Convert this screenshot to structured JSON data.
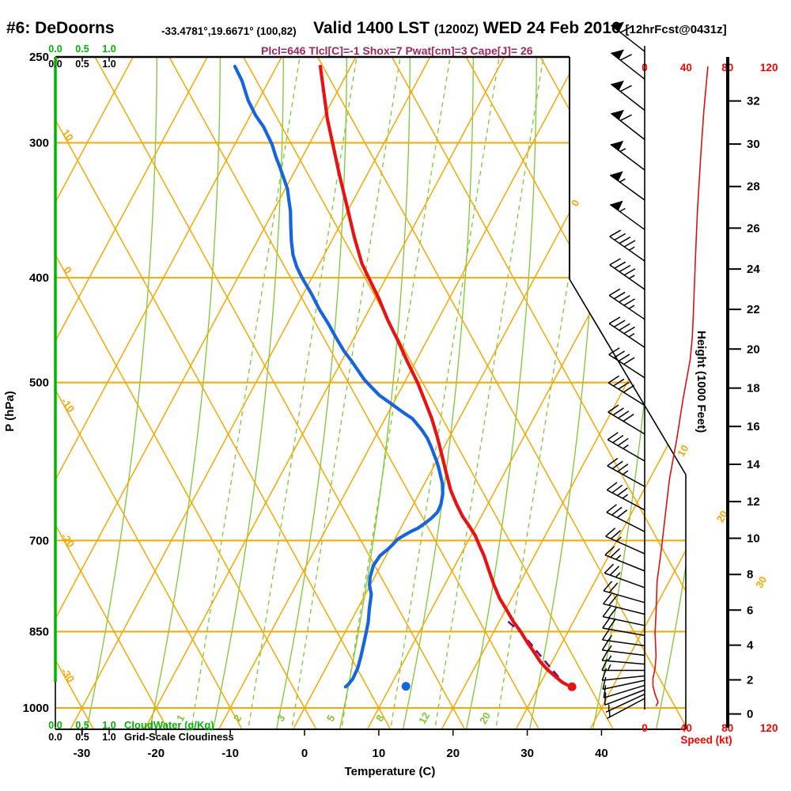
{
  "header": {
    "station": "#6: DeDoorns",
    "coords": "-33.4781°,19.6671° (100,82)",
    "valid_main": "Valid 1400 LST",
    "valid_z": "(1200Z)",
    "valid_date": "WED 24 Feb 2016",
    "fcst_tag": "[12hrFcst@0431z]"
  },
  "params_line": "Plcl=646 Tlcl[C]=-1 Shox=7 Pwat[cm]=3 Cape[J]= 26",
  "indices": {
    "Plcl": 646,
    "Tlcl_C": -1,
    "Shox": 7,
    "Pwat_cm": 3,
    "Cape_J": 26
  },
  "axes": {
    "pressure": {
      "label": "P (hPa)",
      "ticks": [
        250,
        300,
        400,
        500,
        700,
        850,
        1000
      ]
    },
    "temperature": {
      "label": "Temperature (C)",
      "ticks": [
        -30,
        -20,
        -10,
        0,
        10,
        20,
        30,
        40
      ]
    },
    "height": {
      "label": "Height (1000 Feet)",
      "tick_min": 0,
      "tick_max": 32,
      "tick_step": 2
    },
    "speed": {
      "label": "Speed (kt)",
      "ticks": [
        0,
        40,
        80,
        120
      ]
    },
    "cloudwater": {
      "label": "CloudWater (g/Kg)",
      "ticks": [
        "0.0",
        "0.5",
        "1.0"
      ]
    },
    "cloudiness": {
      "label": "Grid-Scale Cloudiness",
      "ticks": [
        "0.0",
        "0.5",
        "1.0"
      ]
    }
  },
  "grid_labels": {
    "dry_adiabats_left": [
      "10",
      "0",
      "-10",
      "-20",
      "-30"
    ],
    "dry_adiabat_values": [
      10,
      0,
      -10,
      -20,
      -30
    ],
    "isotherms_right": [
      "0",
      "10",
      "20",
      "30"
    ],
    "isotherm_values": [
      0,
      10,
      20,
      30
    ],
    "mixing_ratio": [
      "1",
      "2",
      "3",
      "5",
      "8",
      "12",
      "20"
    ],
    "mixing_ratio_x0": [
      235,
      307,
      362,
      425,
      487,
      543,
      620
    ]
  },
  "colors": {
    "grid_orange": "#F6A800",
    "grid_green": "#7DC832",
    "axis_green": "#00B400",
    "temperature": "#E81212",
    "dewpoint": "#1565E0",
    "parcel": "#730B73",
    "speed_curve": "#DD1111",
    "speed_text": "#FF0000",
    "params_text": "#A8245C",
    "text": "#000000"
  },
  "chart_data": {
    "type": "line",
    "title": "Skew-T log-P forecast sounding, DeDoorns #6, valid 1400 LST (1200Z) WED 24 Feb 2016",
    "xlabel": "Temperature (C)",
    "ylabel": "P (hPa)",
    "x_range_c": [
      -35,
      45
    ],
    "pressure_range_hpa": [
      250,
      1000
    ],
    "legend": "none",
    "series": [
      {
        "name": "temperature_c_vs_hpa",
        "color": "#E81212",
        "points": [
          [
            255,
            -44.1
          ],
          [
            285,
            -39.4
          ],
          [
            301,
            -36.8
          ],
          [
            322,
            -33.6
          ],
          [
            343,
            -30.5
          ],
          [
            367,
            -27.2
          ],
          [
            388,
            -24.3
          ],
          [
            401,
            -22.2
          ],
          [
            418,
            -19.5
          ],
          [
            438,
            -16.7
          ],
          [
            458,
            -13.8
          ],
          [
            479,
            -11.0
          ],
          [
            501,
            -8.1
          ],
          [
            521,
            -5.8
          ],
          [
            540,
            -3.7
          ],
          [
            562,
            -1.6
          ],
          [
            585,
            0.4
          ],
          [
            608,
            2.3
          ],
          [
            629,
            4.0
          ],
          [
            648,
            5.8
          ],
          [
            665,
            7.5
          ],
          [
            679,
            9.1
          ],
          [
            693,
            10.6
          ],
          [
            708,
            11.9
          ],
          [
            723,
            13.2
          ],
          [
            747,
            15.0
          ],
          [
            770,
            16.7
          ],
          [
            792,
            18.4
          ],
          [
            812,
            20.2
          ],
          [
            832,
            21.9
          ],
          [
            851,
            23.7
          ],
          [
            870,
            25.3
          ],
          [
            888,
            26.9
          ],
          [
            906,
            28.4
          ],
          [
            922,
            30.0
          ],
          [
            936,
            31.6
          ],
          [
            947,
            32.9
          ],
          [
            952,
            33.7
          ]
        ]
      },
      {
        "name": "dewpoint_c_vs_hpa",
        "color": "#1565E0",
        "points": [
          [
            255,
            -55.6
          ],
          [
            263,
            -53.6
          ],
          [
            274,
            -51.4
          ],
          [
            283,
            -49.3
          ],
          [
            290,
            -47.4
          ],
          [
            301,
            -45.0
          ],
          [
            309,
            -43.6
          ],
          [
            316,
            -42.3
          ],
          [
            324,
            -40.9
          ],
          [
            331,
            -39.7
          ],
          [
            339,
            -38.7
          ],
          [
            347,
            -37.7
          ],
          [
            358,
            -36.6
          ],
          [
            370,
            -35.4
          ],
          [
            381,
            -34.2
          ],
          [
            391,
            -32.8
          ],
          [
            399,
            -31.5
          ],
          [
            407,
            -30.1
          ],
          [
            414,
            -28.9
          ],
          [
            428,
            -26.7
          ],
          [
            441,
            -24.5
          ],
          [
            454,
            -22.5
          ],
          [
            467,
            -20.5
          ],
          [
            478,
            -18.6
          ],
          [
            488,
            -17.0
          ],
          [
            497,
            -15.6
          ],
          [
            505,
            -14.1
          ],
          [
            514,
            -12.4
          ],
          [
            522,
            -10.5
          ],
          [
            529,
            -8.9
          ],
          [
            535,
            -7.5
          ],
          [
            540,
            -6.3
          ],
          [
            547,
            -5.2
          ],
          [
            554,
            -4.1
          ],
          [
            563,
            -2.9
          ],
          [
            573,
            -1.8
          ],
          [
            583,
            -0.8
          ],
          [
            591,
            0.0
          ],
          [
            600,
            0.8
          ],
          [
            610,
            1.6
          ],
          [
            620,
            2.4
          ],
          [
            634,
            3.2
          ],
          [
            648,
            3.7
          ],
          [
            659,
            3.8
          ],
          [
            668,
            3.4
          ],
          [
            675,
            2.9
          ],
          [
            682,
            2.3
          ],
          [
            686,
            1.7
          ],
          [
            692,
            1.0
          ],
          [
            698,
            0.4
          ],
          [
            706,
            0.1
          ],
          [
            713,
            -0.2
          ],
          [
            723,
            -0.8
          ],
          [
            738,
            -1.0
          ],
          [
            757,
            -0.6
          ],
          [
            770,
            -0.1
          ],
          [
            785,
            0.8
          ],
          [
            810,
            1.6
          ],
          [
            833,
            2.4
          ],
          [
            849,
            2.8
          ],
          [
            870,
            3.3
          ],
          [
            897,
            3.9
          ],
          [
            919,
            4.3
          ],
          [
            940,
            4.4
          ],
          [
            951,
            4.2
          ],
          [
            956,
            4.0
          ]
        ]
      },
      {
        "name": "parcel_path_dashed",
        "color": "#730B73",
        "style": "dashed",
        "points": [
          [
            832,
            21.2
          ],
          [
            854,
            24.0
          ],
          [
            877,
            26.3
          ],
          [
            903,
            28.8
          ],
          [
            926,
            31.0
          ],
          [
            947,
            33.0
          ],
          [
            952,
            33.7
          ]
        ]
      },
      {
        "name": "wind_speed_kt_vs_hpa",
        "color": "#DD1111",
        "points": [
          [
            255,
            61
          ],
          [
            281,
            57
          ],
          [
            310,
            54
          ],
          [
            346,
            51
          ],
          [
            383,
            49
          ],
          [
            431,
            47
          ],
          [
            453,
            46
          ],
          [
            476,
            44
          ],
          [
            518,
            37
          ],
          [
            564,
            31
          ],
          [
            614,
            24
          ],
          [
            662,
            20
          ],
          [
            714,
            16
          ],
          [
            764,
            12
          ],
          [
            817,
            11
          ],
          [
            852,
            10
          ],
          [
            896,
            11
          ],
          [
            919,
            10
          ],
          [
            939,
            8
          ],
          [
            955,
            8
          ],
          [
            971,
            10
          ],
          [
            988,
            13
          ],
          [
            996,
            11
          ]
        ]
      }
    ],
    "surface_markers": [
      {
        "name": "surface-temperature-dot",
        "p": 956,
        "value_c": 34.5,
        "color": "#E81212"
      },
      {
        "name": "surface-dewpoint-dot",
        "p": 955,
        "value_c": 12.1,
        "color": "#1565E0"
      }
    ],
    "wind_barbs_p_kt_angle": [
      [
        247,
        60,
        38
      ],
      [
        262,
        60,
        38
      ],
      [
        280,
        60,
        38
      ],
      [
        298,
        60,
        38
      ],
      [
        318,
        55,
        37
      ],
      [
        339,
        55,
        36
      ],
      [
        361,
        55,
        36
      ],
      [
        386,
        45,
        35
      ],
      [
        410,
        45,
        35
      ],
      [
        437,
        45,
        34
      ],
      [
        464,
        45,
        34
      ],
      [
        495,
        40,
        33
      ],
      [
        525,
        40,
        32
      ],
      [
        558,
        40,
        31
      ],
      [
        591,
        35,
        30
      ],
      [
        624,
        35,
        29
      ],
      [
        656,
        35,
        28
      ],
      [
        687,
        30,
        27
      ],
      [
        720,
        25,
        24
      ],
      [
        747,
        25,
        22
      ],
      [
        774,
        25,
        20
      ],
      [
        799,
        20,
        16
      ],
      [
        819,
        20,
        14
      ],
      [
        839,
        20,
        12
      ],
      [
        857,
        20,
        10
      ],
      [
        876,
        15,
        8
      ],
      [
        894,
        15,
        7
      ],
      [
        911,
        15,
        5
      ],
      [
        923,
        15,
        0
      ],
      [
        934,
        10,
        -6
      ],
      [
        943,
        10,
        -12
      ],
      [
        953,
        10,
        -17
      ],
      [
        962,
        10,
        -21
      ],
      [
        971,
        5,
        -25
      ],
      [
        980,
        5,
        -28
      ]
    ]
  }
}
